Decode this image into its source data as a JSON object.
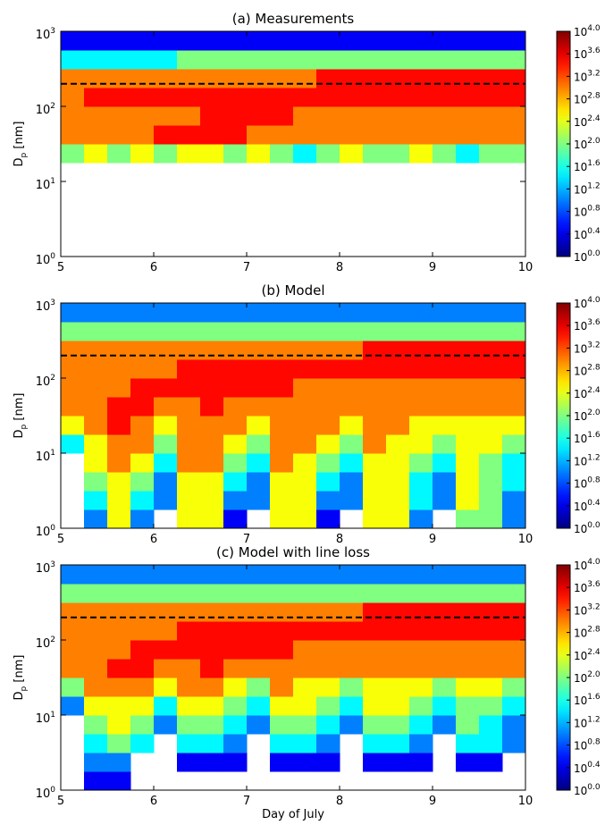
{
  "chart_data": [
    {
      "type": "heatmap",
      "title": "(a) Measurements",
      "ylabel": {
        "main": "D",
        "sub": "p",
        "rest": " [nm]"
      },
      "x": [
        5,
        5.25,
        5.5,
        5.75,
        6,
        6.25,
        6.5,
        6.75,
        7,
        7.25,
        7.5,
        7.75,
        8,
        8.25,
        8.5,
        8.75,
        9,
        9.25,
        9.5,
        9.75,
        10
      ],
      "y": [
        1,
        1.778,
        3.162,
        5.623,
        10,
        17.78,
        31.62,
        56.23,
        100,
        177.8,
        316.2,
        562.3,
        1000
      ],
      "z": [
        [
          null,
          null,
          null,
          null,
          null,
          null,
          null,
          null,
          null,
          null,
          null,
          null,
          null,
          null,
          null,
          null,
          null,
          null,
          null,
          null
        ],
        [
          null,
          null,
          null,
          null,
          null,
          null,
          null,
          null,
          null,
          null,
          null,
          null,
          null,
          null,
          null,
          null,
          null,
          null,
          null,
          null
        ],
        [
          null,
          null,
          null,
          null,
          null,
          null,
          null,
          null,
          null,
          null,
          null,
          null,
          null,
          null,
          null,
          null,
          null,
          null,
          null,
          null
        ],
        [
          null,
          null,
          null,
          null,
          null,
          null,
          null,
          null,
          null,
          null,
          null,
          null,
          null,
          null,
          null,
          null,
          null,
          null,
          null,
          null
        ],
        [
          null,
          null,
          null,
          null,
          null,
          null,
          null,
          null,
          null,
          null,
          null,
          null,
          null,
          null,
          null,
          null,
          null,
          null,
          null,
          null
        ],
        [
          100,
          300,
          100,
          300,
          100,
          300,
          300,
          100,
          300,
          100,
          30,
          100,
          300,
          100,
          100,
          300,
          100,
          30,
          100,
          100
        ],
        [
          1000,
          1000,
          1000,
          1000,
          3000,
          3000,
          3000,
          3000,
          1000,
          1000,
          1000,
          1000,
          1000,
          1000,
          1000,
          1000,
          1000,
          1000,
          1000,
          1000
        ],
        [
          1000,
          1000,
          1000,
          1000,
          1000,
          1000,
          3000,
          3000,
          3000,
          3000,
          1000,
          1000,
          1000,
          1000,
          1000,
          1000,
          1000,
          1000,
          1000,
          1000
        ],
        [
          1000,
          3000,
          3000,
          3000,
          3000,
          3000,
          3000,
          3000,
          3000,
          3000,
          3000,
          3000,
          3000,
          3000,
          3000,
          3000,
          3000,
          3000,
          3000,
          3000
        ],
        [
          1000,
          1000,
          1000,
          1000,
          1000,
          1000,
          1000,
          1000,
          1000,
          1000,
          1000,
          3000,
          3000,
          3000,
          3000,
          3000,
          3000,
          3000,
          3000,
          3000
        ],
        [
          30,
          30,
          30,
          30,
          30,
          100,
          100,
          100,
          100,
          100,
          100,
          100,
          100,
          100,
          100,
          100,
          100,
          100,
          100,
          100
        ],
        [
          3,
          3,
          3,
          3,
          3,
          3,
          3,
          3,
          3,
          3,
          3,
          3,
          3,
          3,
          3,
          3,
          3,
          3,
          3,
          3
        ]
      ],
      "xlim": [
        5,
        10
      ],
      "xticks": [
        5,
        6,
        7,
        8,
        9,
        10
      ],
      "ylim": [
        1,
        1000
      ],
      "yscale": "log",
      "yticks": [
        {
          "value": 1,
          "label": "10",
          "exp": "0"
        },
        {
          "value": 10,
          "label": "10",
          "exp": "1"
        },
        {
          "value": 100,
          "label": "10",
          "exp": "2"
        },
        {
          "value": 1000,
          "label": "10",
          "exp": "3"
        }
      ],
      "zlim": [
        1,
        10000
      ],
      "zscale": "log",
      "colormap": "jet",
      "zticks": [
        {
          "value": 1,
          "label": "10",
          "exp": "0.0"
        },
        {
          "value": 2.512,
          "label": "10",
          "exp": "0.4"
        },
        {
          "value": 6.31,
          "label": "10",
          "exp": "0.8"
        },
        {
          "value": 15.85,
          "label": "10",
          "exp": "1.2"
        },
        {
          "value": 39.81,
          "label": "10",
          "exp": "1.6"
        },
        {
          "value": 100,
          "label": "10",
          "exp": "2.0"
        },
        {
          "value": 251.2,
          "label": "10",
          "exp": "2.4"
        },
        {
          "value": 631,
          "label": "10",
          "exp": "2.8"
        },
        {
          "value": 1585,
          "label": "10",
          "exp": "3.2"
        },
        {
          "value": 3981,
          "label": "10",
          "exp": "3.6"
        },
        {
          "value": 10000,
          "label": "10",
          "exp": "4.0"
        }
      ],
      "reference_line": 200
    },
    {
      "type": "heatmap",
      "title": "(b) Model",
      "ylabel": {
        "main": "D",
        "sub": "p",
        "rest": " [nm]"
      },
      "x": [
        5,
        5.25,
        5.5,
        5.75,
        6,
        6.25,
        6.5,
        6.75,
        7,
        7.25,
        7.5,
        7.75,
        8,
        8.25,
        8.5,
        8.75,
        9,
        9.25,
        9.5,
        9.75,
        10
      ],
      "y": [
        1,
        1.778,
        3.162,
        5.623,
        10,
        17.78,
        31.62,
        56.23,
        100,
        177.8,
        316.2,
        562.3,
        1000
      ],
      "z": [
        [
          null,
          10,
          300,
          10,
          null,
          300,
          300,
          3,
          null,
          300,
          300,
          3,
          null,
          300,
          300,
          10,
          null,
          100,
          100,
          10
        ],
        [
          null,
          30,
          300,
          30,
          10,
          300,
          300,
          10,
          10,
          300,
          300,
          10,
          10,
          300,
          300,
          30,
          10,
          300,
          100,
          10
        ],
        [
          null,
          100,
          300,
          100,
          10,
          300,
          300,
          30,
          10,
          300,
          300,
          30,
          10,
          300,
          300,
          30,
          10,
          300,
          100,
          30
        ],
        [
          null,
          300,
          1000,
          300,
          30,
          1000,
          1000,
          100,
          30,
          1000,
          300,
          100,
          30,
          300,
          300,
          100,
          30,
          300,
          100,
          30
        ],
        [
          30,
          300,
          1000,
          1000,
          100,
          1000,
          1000,
          300,
          100,
          1000,
          1000,
          300,
          100,
          1000,
          300,
          300,
          100,
          300,
          300,
          100
        ],
        [
          300,
          1000,
          3000,
          1000,
          300,
          1000,
          1000,
          1000,
          300,
          1000,
          1000,
          1000,
          300,
          1000,
          1000,
          300,
          300,
          300,
          300,
          300
        ],
        [
          1000,
          1000,
          3000,
          3000,
          1000,
          1000,
          3000,
          1000,
          1000,
          1000,
          1000,
          1000,
          1000,
          1000,
          1000,
          1000,
          1000,
          1000,
          1000,
          1000
        ],
        [
          1000,
          1000,
          1000,
          3000,
          3000,
          3000,
          3000,
          3000,
          3000,
          3000,
          1000,
          1000,
          1000,
          1000,
          1000,
          1000,
          1000,
          1000,
          1000,
          1000
        ],
        [
          1000,
          1000,
          1000,
          1000,
          1000,
          3000,
          3000,
          3000,
          3000,
          3000,
          3000,
          3000,
          3000,
          3000,
          3000,
          3000,
          3000,
          3000,
          3000,
          3000
        ],
        [
          1000,
          1000,
          1000,
          1000,
          1000,
          1000,
          1000,
          1000,
          1000,
          1000,
          1000,
          1000,
          1000,
          3000,
          3000,
          3000,
          3000,
          3000,
          3000,
          3000
        ],
        [
          100,
          100,
          100,
          100,
          100,
          100,
          100,
          100,
          100,
          100,
          100,
          100,
          100,
          100,
          100,
          100,
          100,
          100,
          100,
          100
        ],
        [
          10,
          10,
          10,
          10,
          10,
          10,
          10,
          10,
          10,
          10,
          10,
          10,
          10,
          10,
          10,
          10,
          10,
          10,
          10,
          10
        ]
      ],
      "xlim": [
        5,
        10
      ],
      "xticks": [
        5,
        6,
        7,
        8,
        9,
        10
      ],
      "ylim": [
        1,
        1000
      ],
      "yscale": "log",
      "yticks": [
        {
          "value": 1,
          "label": "10",
          "exp": "0"
        },
        {
          "value": 10,
          "label": "10",
          "exp": "1"
        },
        {
          "value": 100,
          "label": "10",
          "exp": "2"
        },
        {
          "value": 1000,
          "label": "10",
          "exp": "3"
        }
      ],
      "zlim": [
        1,
        10000
      ],
      "zscale": "log",
      "colormap": "jet",
      "zticks": [
        {
          "value": 1,
          "label": "10",
          "exp": "0.0"
        },
        {
          "value": 2.512,
          "label": "10",
          "exp": "0.4"
        },
        {
          "value": 6.31,
          "label": "10",
          "exp": "0.8"
        },
        {
          "value": 15.85,
          "label": "10",
          "exp": "1.2"
        },
        {
          "value": 39.81,
          "label": "10",
          "exp": "1.6"
        },
        {
          "value": 100,
          "label": "10",
          "exp": "2.0"
        },
        {
          "value": 251.2,
          "label": "10",
          "exp": "2.4"
        },
        {
          "value": 631,
          "label": "10",
          "exp": "2.8"
        },
        {
          "value": 1585,
          "label": "10",
          "exp": "3.2"
        },
        {
          "value": 3981,
          "label": "10",
          "exp": "3.6"
        },
        {
          "value": 10000,
          "label": "10",
          "exp": "4.0"
        }
      ],
      "reference_line": 200
    },
    {
      "type": "heatmap",
      "title": "(c) Model with line loss",
      "xlabel": "Day of July",
      "ylabel": {
        "main": "D",
        "sub": "p",
        "rest": " [nm]"
      },
      "x": [
        5,
        5.25,
        5.5,
        5.75,
        6,
        6.25,
        6.5,
        6.75,
        7,
        7.25,
        7.5,
        7.75,
        8,
        8.25,
        8.5,
        8.75,
        9,
        9.25,
        9.5,
        9.75,
        10
      ],
      "y": [
        1,
        1.778,
        3.162,
        5.623,
        10,
        17.78,
        31.62,
        56.23,
        100,
        177.8,
        316.2,
        562.3,
        1000
      ],
      "z": [
        [
          null,
          3,
          3,
          null,
          null,
          null,
          null,
          null,
          null,
          null,
          null,
          null,
          null,
          null,
          null,
          null,
          null,
          null,
          null,
          null
        ],
        [
          null,
          10,
          10,
          null,
          null,
          3,
          3,
          3,
          null,
          3,
          3,
          3,
          null,
          3,
          3,
          3,
          null,
          3,
          3,
          null
        ],
        [
          null,
          30,
          100,
          30,
          null,
          30,
          30,
          10,
          null,
          30,
          30,
          10,
          null,
          30,
          30,
          10,
          null,
          30,
          30,
          10
        ],
        [
          null,
          100,
          300,
          100,
          10,
          100,
          100,
          30,
          10,
          100,
          100,
          30,
          10,
          100,
          100,
          30,
          10,
          100,
          30,
          10
        ],
        [
          10,
          300,
          300,
          300,
          30,
          300,
          300,
          100,
          30,
          300,
          300,
          100,
          30,
          300,
          300,
          100,
          30,
          100,
          100,
          30
        ],
        [
          100,
          1000,
          1000,
          1000,
          300,
          1000,
          1000,
          300,
          100,
          1000,
          300,
          300,
          100,
          300,
          300,
          300,
          100,
          300,
          300,
          100
        ],
        [
          1000,
          1000,
          3000,
          3000,
          1000,
          1000,
          3000,
          1000,
          1000,
          1000,
          1000,
          1000,
          1000,
          1000,
          1000,
          1000,
          1000,
          1000,
          1000,
          1000
        ],
        [
          1000,
          1000,
          1000,
          3000,
          3000,
          3000,
          3000,
          3000,
          3000,
          3000,
          1000,
          1000,
          1000,
          1000,
          1000,
          1000,
          1000,
          1000,
          1000,
          1000
        ],
        [
          1000,
          1000,
          1000,
          1000,
          1000,
          3000,
          3000,
          3000,
          3000,
          3000,
          3000,
          3000,
          3000,
          3000,
          3000,
          3000,
          3000,
          3000,
          3000,
          3000
        ],
        [
          1000,
          1000,
          1000,
          1000,
          1000,
          1000,
          1000,
          1000,
          1000,
          1000,
          1000,
          1000,
          1000,
          3000,
          3000,
          3000,
          3000,
          3000,
          3000,
          3000
        ],
        [
          100,
          100,
          100,
          100,
          100,
          100,
          100,
          100,
          100,
          100,
          100,
          100,
          100,
          100,
          100,
          100,
          100,
          100,
          100,
          100
        ],
        [
          10,
          10,
          10,
          10,
          10,
          10,
          10,
          10,
          10,
          10,
          10,
          10,
          10,
          10,
          10,
          10,
          10,
          10,
          10,
          10
        ]
      ],
      "xlim": [
        5,
        10
      ],
      "xticks": [
        5,
        6,
        7,
        8,
        9,
        10
      ],
      "ylim": [
        1,
        1000
      ],
      "yscale": "log",
      "yticks": [
        {
          "value": 1,
          "label": "10",
          "exp": "0"
        },
        {
          "value": 10,
          "label": "10",
          "exp": "1"
        },
        {
          "value": 100,
          "label": "10",
          "exp": "2"
        },
        {
          "value": 1000,
          "label": "10",
          "exp": "3"
        }
      ],
      "zlim": [
        1,
        10000
      ],
      "zscale": "log",
      "colormap": "jet",
      "zticks": [
        {
          "value": 1,
          "label": "10",
          "exp": "0.0"
        },
        {
          "value": 2.512,
          "label": "10",
          "exp": "0.4"
        },
        {
          "value": 6.31,
          "label": "10",
          "exp": "0.8"
        },
        {
          "value": 15.85,
          "label": "10",
          "exp": "1.2"
        },
        {
          "value": 39.81,
          "label": "10",
          "exp": "1.6"
        },
        {
          "value": 100,
          "label": "10",
          "exp": "2.0"
        },
        {
          "value": 251.2,
          "label": "10",
          "exp": "2.4"
        },
        {
          "value": 631,
          "label": "10",
          "exp": "2.8"
        },
        {
          "value": 1585,
          "label": "10",
          "exp": "3.2"
        },
        {
          "value": 3981,
          "label": "10",
          "exp": "3.6"
        },
        {
          "value": 10000,
          "label": "10",
          "exp": "4.0"
        }
      ],
      "reference_line": 200
    }
  ]
}
